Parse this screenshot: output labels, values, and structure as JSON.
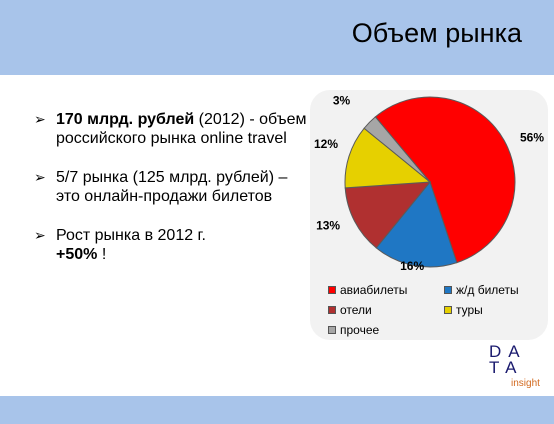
{
  "slide": {
    "title": "Объем рынка"
  },
  "bullets": [
    {
      "marker": "➢",
      "bold": "170 млрд. рублей",
      "text": " (2012) - объем российского рынка online travel"
    },
    {
      "marker": "➢",
      "bold": "",
      "text": "5/7 рынка (125 млрд. рублей) – это онлайн-продажи билетов"
    },
    {
      "marker": "➢",
      "bold": "",
      "text": "Рост рынка в 2012 г.",
      "bold2": "+50%",
      "text2": " !"
    }
  ],
  "logo": {
    "row1": "DA",
    "row2": "TA",
    "sub": "insight"
  },
  "chart_data": {
    "type": "pie",
    "categories": [
      "авиабилеты",
      "ж/д билеты",
      "отели",
      "туры",
      "прочее"
    ],
    "values": [
      56,
      16,
      13,
      12,
      3
    ],
    "labels": [
      "56%",
      "16%",
      "13%",
      "12%",
      "3%"
    ],
    "colors": [
      "#ff0000",
      "#1f77c4",
      "#b03030",
      "#e6d000",
      "#a6a6a6"
    ],
    "legend_position": "bottom"
  }
}
